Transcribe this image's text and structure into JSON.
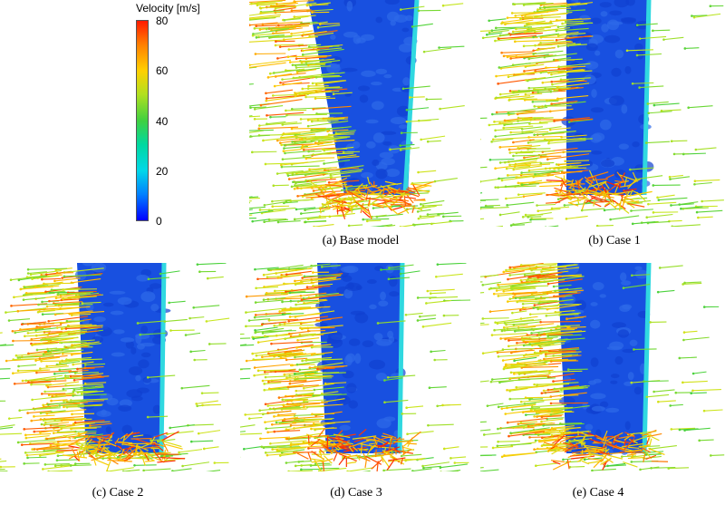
{
  "legend": {
    "title": "Velocity [m/s]",
    "ticks": [
      "80",
      "60",
      "40",
      "20",
      "0"
    ],
    "colors": [
      "#ff2000",
      "#ffd000",
      "#40d040",
      "#00d8e8",
      "#0000ff"
    ]
  },
  "panels": [
    {
      "id": "a",
      "caption": "(a) Base model"
    },
    {
      "id": "b",
      "caption": "(b) Case 1"
    },
    {
      "id": "c",
      "caption": "(c) Case 2"
    },
    {
      "id": "d",
      "caption": "(d) Case 3"
    },
    {
      "id": "e",
      "caption": "(e) Case 4"
    }
  ]
}
